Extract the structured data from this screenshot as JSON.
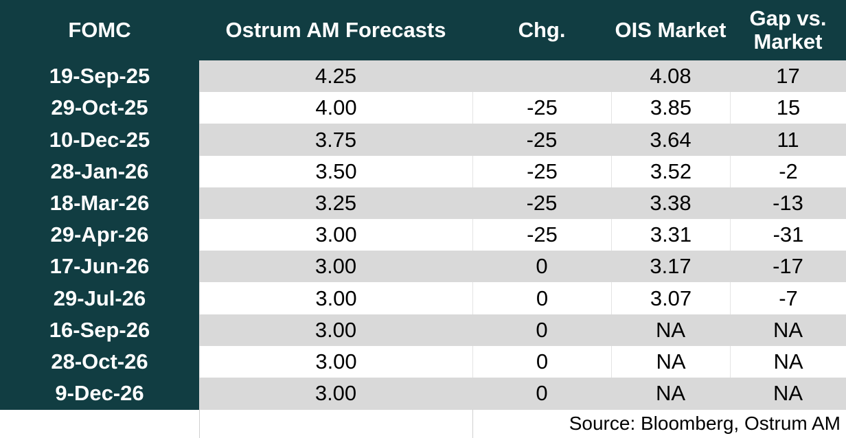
{
  "table": {
    "columns": [
      "FOMC",
      "Ostrum AM Forecasts",
      "Chg.",
      "OIS Market",
      "Gap vs. Market"
    ],
    "rows": [
      [
        "19-Sep-25",
        "4.25",
        null,
        "4.08",
        "17"
      ],
      [
        "29-Oct-25",
        "4.00",
        "-25",
        "3.85",
        "15"
      ],
      [
        "10-Dec-25",
        "3.75",
        "-25",
        "3.64",
        "11"
      ],
      [
        "28-Jan-26",
        "3.50",
        "-25",
        "3.52",
        "-2"
      ],
      [
        "18-Mar-26",
        "3.25",
        "-25",
        "3.38",
        "-13"
      ],
      [
        "29-Apr-26",
        "3.00",
        "-25",
        "3.31",
        "-31"
      ],
      [
        "17-Jun-26",
        "3.00",
        "0",
        "3.17",
        "-17"
      ],
      [
        "29-Jul-26",
        "3.00",
        "0",
        "3.07",
        "-7"
      ],
      [
        "16-Sep-26",
        "3.00",
        "0",
        "NA",
        "NA"
      ],
      [
        "28-Oct-26",
        "3.00",
        "0",
        "NA",
        "NA"
      ],
      [
        "9-Dec-26",
        "3.00",
        "0",
        "NA",
        "NA"
      ]
    ],
    "source": "Source: Bloomberg, Ostrum AM"
  }
}
